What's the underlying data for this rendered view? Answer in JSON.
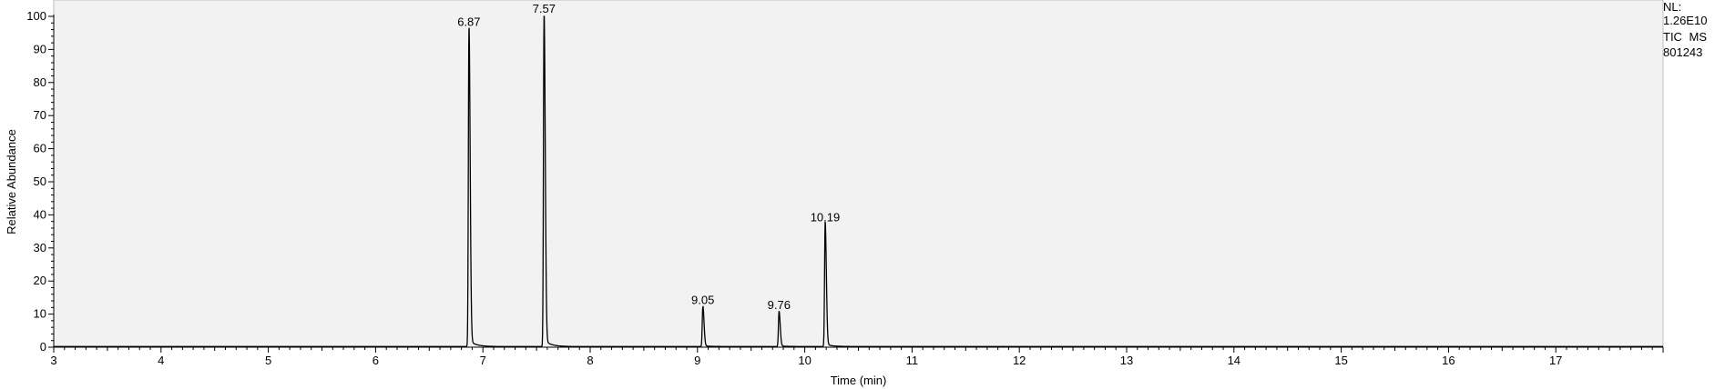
{
  "chart_data": {
    "type": "line",
    "title": "",
    "xlabel": "Time (min)",
    "ylabel": "Relative Abundance",
    "xlim": [
      3,
      18
    ],
    "ylim": [
      0,
      100
    ],
    "x_ticks": [
      3,
      4,
      5,
      6,
      7,
      8,
      9,
      10,
      11,
      12,
      13,
      14,
      15,
      16,
      17
    ],
    "y_ticks": [
      0,
      10,
      20,
      30,
      40,
      50,
      60,
      70,
      80,
      90,
      100
    ],
    "grid": false,
    "background": "#f2f2f2",
    "line_color": "#000000",
    "peaks": [
      {
        "rt": 6.87,
        "label": "6.87",
        "height": 96
      },
      {
        "rt": 7.57,
        "label": "7.57",
        "height": 100
      },
      {
        "rt": 9.05,
        "label": "9.05",
        "height": 12
      },
      {
        "rt": 9.76,
        "label": "9.76",
        "height": 10.5
      },
      {
        "rt": 10.19,
        "label": "10.19",
        "height": 37
      }
    ]
  },
  "info": {
    "nl_label": "NL:",
    "nl_value": "1.26E10",
    "trace": "TIC  MS",
    "sample": "801243"
  }
}
